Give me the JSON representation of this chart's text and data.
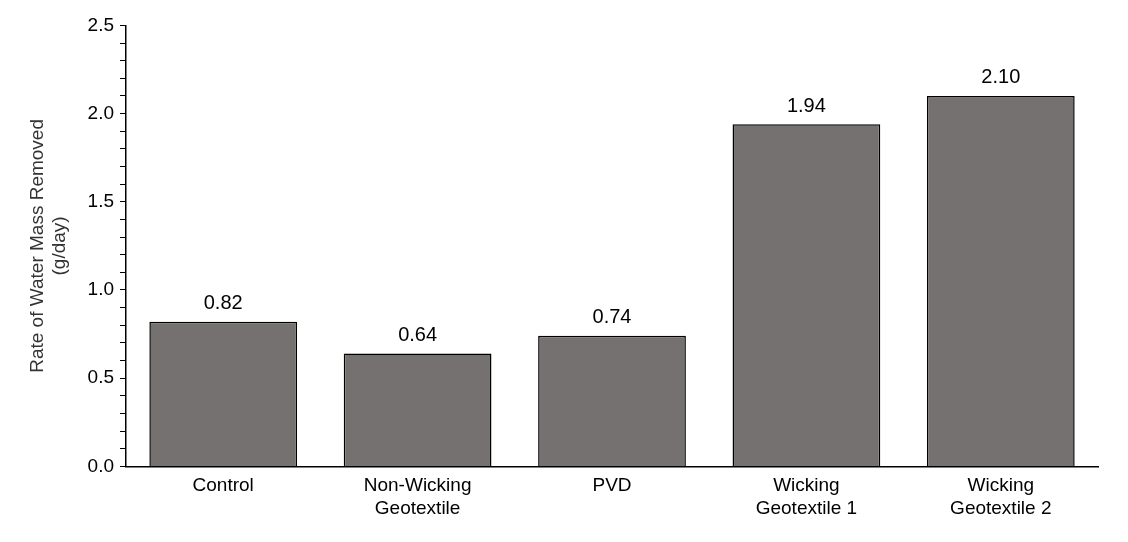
{
  "chart_data": {
    "type": "bar",
    "ylabel": "Rate of Water Mass Removed\n(g/day)",
    "categories": [
      "Control",
      "Non-Wicking\nGeotextile",
      "PVD",
      "Wicking\nGeotextile 1",
      "Wicking\nGeotextile 2"
    ],
    "values": [
      0.82,
      0.64,
      0.74,
      1.94,
      2.1
    ],
    "value_labels": [
      "0.82",
      "0.64",
      "0.74",
      "1.94",
      "2.10"
    ],
    "color": "#767171",
    "ylim": [
      0,
      2.5
    ],
    "yticks": [
      {
        "value": 0,
        "label": "0.0"
      },
      {
        "value": 0.1,
        "label": null
      },
      {
        "value": 0.2,
        "label": null
      },
      {
        "value": 0.3,
        "label": null
      },
      {
        "value": 0.4,
        "label": null
      },
      {
        "value": 0.5,
        "label": "0.5"
      },
      {
        "value": 0.6,
        "label": null
      },
      {
        "value": 0.7,
        "label": null
      },
      {
        "value": 0.8,
        "label": null
      },
      {
        "value": 0.9,
        "label": null
      },
      {
        "value": 1.0,
        "label": "1.0"
      },
      {
        "value": 1.1,
        "label": null
      },
      {
        "value": 1.2,
        "label": null
      },
      {
        "value": 1.3,
        "label": null
      },
      {
        "value": 1.4,
        "label": null
      },
      {
        "value": 1.5,
        "label": "1.5"
      },
      {
        "value": 1.6,
        "label": null
      },
      {
        "value": 1.7,
        "label": null
      },
      {
        "value": 1.8,
        "label": null
      },
      {
        "value": 1.9,
        "label": null
      },
      {
        "value": 2.0,
        "label": "2.0"
      },
      {
        "value": 2.1,
        "label": null
      },
      {
        "value": 2.2,
        "label": null
      },
      {
        "value": 2.3,
        "label": null
      },
      {
        "value": 2.4,
        "label": null
      },
      {
        "value": 2.5,
        "label": "2.5"
      }
    ],
    "grid": false,
    "legend": false
  }
}
